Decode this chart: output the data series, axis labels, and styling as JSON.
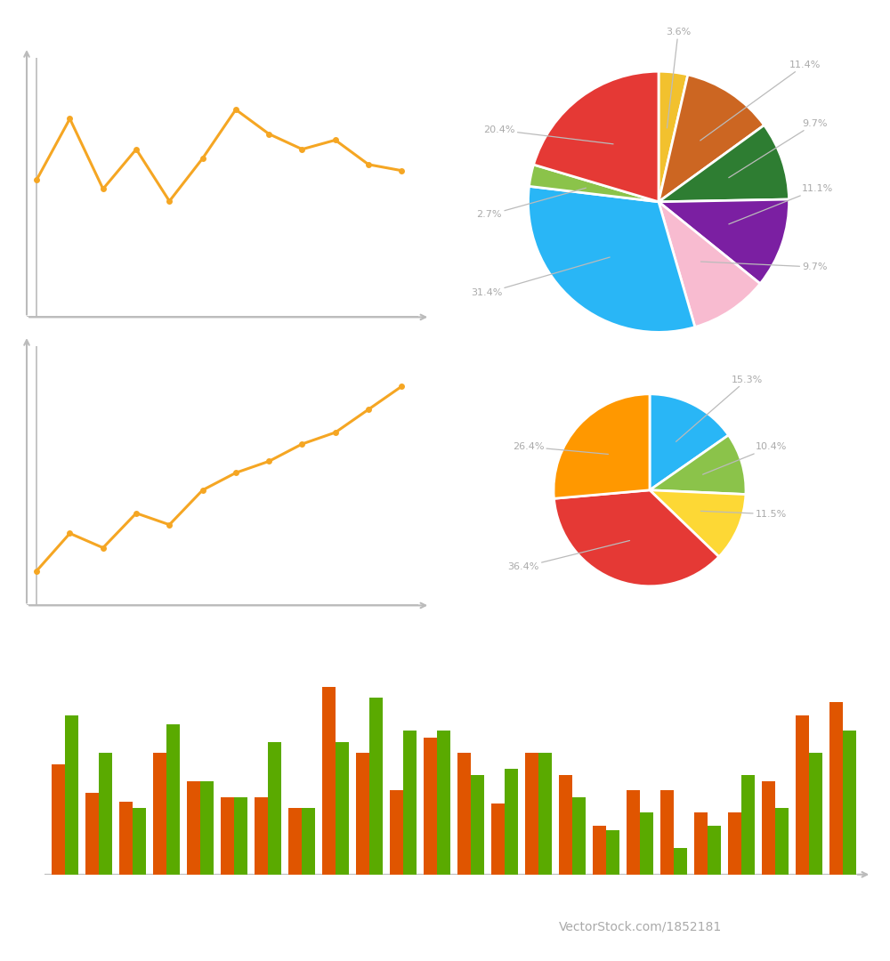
{
  "line1_y": [
    0.45,
    0.65,
    0.42,
    0.55,
    0.38,
    0.52,
    0.68,
    0.6,
    0.55,
    0.58,
    0.5,
    0.48
  ],
  "line2_y": [
    0.12,
    0.25,
    0.2,
    0.32,
    0.28,
    0.4,
    0.46,
    0.5,
    0.56,
    0.6,
    0.68,
    0.76
  ],
  "line_color": "#F5A623",
  "pie1_sizes": [
    3.6,
    11.4,
    9.7,
    11.1,
    9.7,
    31.4,
    2.7,
    20.4
  ],
  "pie1_colors": [
    "#F2C12E",
    "#CC6622",
    "#2E7D32",
    "#7B1FA2",
    "#F8BBD0",
    "#29B6F6",
    "#8BC34A",
    "#E53935"
  ],
  "pie1_labels": [
    "3.6%",
    "11.4%",
    "9.7%",
    "11.1%",
    "9.7%",
    "31.4%",
    "2.7%",
    "20.4%"
  ],
  "pie2_sizes": [
    15.3,
    10.4,
    11.5,
    36.4,
    26.4
  ],
  "pie2_colors": [
    "#29B6F6",
    "#8BC34A",
    "#FDD835",
    "#E53935",
    "#FF9800"
  ],
  "pie2_labels": [
    "15.3%",
    "10.4%",
    "11.5%",
    "36.4%",
    "26.4%"
  ],
  "bar_orange": [
    0.5,
    0.37,
    0.33,
    0.55,
    0.42,
    0.35,
    0.35,
    0.3,
    0.85,
    0.55,
    0.38,
    0.62,
    0.55,
    0.32,
    0.55,
    0.45,
    0.22,
    0.38,
    0.38,
    0.28,
    0.28,
    0.42,
    0.72,
    0.78
  ],
  "bar_green": [
    0.72,
    0.55,
    0.3,
    0.68,
    0.42,
    0.35,
    0.6,
    0.3,
    0.6,
    0.8,
    0.65,
    0.65,
    0.45,
    0.48,
    0.55,
    0.35,
    0.2,
    0.28,
    0.12,
    0.22,
    0.45,
    0.3,
    0.55,
    0.65
  ],
  "bar_orange_color": "#E05500",
  "bar_green_color": "#5AAA00",
  "bg_color": "#FFFFFF",
  "axis_color": "#BBBBBB",
  "label_color": "#AAAAAA",
  "footer_bg": "#1C1C30",
  "footer_text": "#FFFFFF",
  "footer_subtext": "#AAAAAA"
}
